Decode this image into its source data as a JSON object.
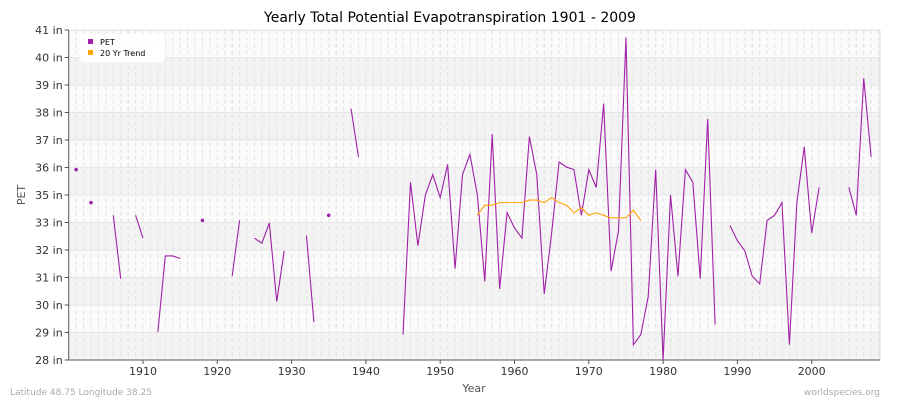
{
  "chart_data": {
    "type": "line",
    "title": "Yearly Total Potential Evapotranspiration 1901 - 2009",
    "xlabel": "Year",
    "ylabel": "PET",
    "xlim": [
      1900,
      2009
    ],
    "ylim": [
      28,
      41
    ],
    "y_tick_labels": [
      "28 in",
      "29 in",
      "30 in",
      "31 in",
      "32 in",
      "33 in",
      "35 in",
      "36 in",
      "37 in",
      "38 in",
      "39 in",
      "40 in",
      "41 in"
    ],
    "x_ticks": [
      1910,
      1920,
      1930,
      1940,
      1950,
      1960,
      1970,
      1980,
      1990,
      2000
    ],
    "grid": true,
    "legend_placement": "top-left",
    "series": [
      {
        "name": "PET",
        "color": "#a020a8",
        "points": [
          [
            1901,
            35.5
          ],
          [
            1902,
            null
          ],
          [
            1903,
            34.2
          ],
          [
            1904,
            null
          ],
          [
            1905,
            null
          ],
          [
            1906,
            33.7
          ],
          [
            1907,
            31.2
          ],
          [
            1908,
            null
          ],
          [
            1909,
            33.7
          ],
          [
            1910,
            32.8
          ],
          [
            1911,
            null
          ],
          [
            1912,
            29.1
          ],
          [
            1913,
            32.1
          ],
          [
            1914,
            32.1
          ],
          [
            1915,
            32.0
          ],
          [
            1916,
            null
          ],
          [
            1917,
            null
          ],
          [
            1918,
            33.5
          ],
          [
            1919,
            null
          ],
          [
            1920,
            null
          ],
          [
            1921,
            null
          ],
          [
            1922,
            31.3
          ],
          [
            1923,
            33.5
          ],
          [
            1924,
            null
          ],
          [
            1925,
            32.8
          ],
          [
            1926,
            32.6
          ],
          [
            1927,
            33.4
          ],
          [
            1928,
            30.3
          ],
          [
            1929,
            32.3
          ],
          [
            1930,
            null
          ],
          [
            1931,
            null
          ],
          [
            1932,
            32.9
          ],
          [
            1933,
            29.5
          ],
          [
            1934,
            null
          ],
          [
            1935,
            33.7
          ],
          [
            1936,
            null
          ],
          [
            1937,
            null
          ],
          [
            1938,
            37.9
          ],
          [
            1939,
            36.0
          ],
          [
            1940,
            null
          ],
          [
            1941,
            null
          ],
          [
            1942,
            null
          ],
          [
            1943,
            null
          ],
          [
            1944,
            null
          ],
          [
            1945,
            29.0
          ],
          [
            1946,
            35.0
          ],
          [
            1947,
            32.5
          ],
          [
            1948,
            34.5
          ],
          [
            1949,
            35.3
          ],
          [
            1950,
            34.4
          ],
          [
            1951,
            35.7
          ],
          [
            1952,
            31.6
          ],
          [
            1953,
            35.3
          ],
          [
            1954,
            36.1
          ],
          [
            1955,
            34.5
          ],
          [
            1956,
            31.1
          ],
          [
            1957,
            36.9
          ],
          [
            1958,
            30.8
          ],
          [
            1959,
            33.8
          ],
          [
            1960,
            33.2
          ],
          [
            1961,
            32.8
          ],
          [
            1962,
            36.8
          ],
          [
            1963,
            35.3
          ],
          [
            1964,
            30.6
          ],
          [
            1965,
            33.0
          ],
          [
            1966,
            35.8
          ],
          [
            1967,
            35.6
          ],
          [
            1968,
            35.5
          ],
          [
            1969,
            33.7
          ],
          [
            1970,
            35.5
          ],
          [
            1971,
            34.8
          ],
          [
            1972,
            38.1
          ],
          [
            1973,
            31.5
          ],
          [
            1974,
            33.1
          ],
          [
            1975,
            40.7
          ],
          [
            1976,
            28.6
          ],
          [
            1977,
            29.0
          ],
          [
            1978,
            30.5
          ],
          [
            1979,
            35.5
          ],
          [
            1980,
            28.0
          ],
          [
            1981,
            34.5
          ],
          [
            1982,
            31.3
          ],
          [
            1983,
            35.5
          ],
          [
            1984,
            35.0
          ],
          [
            1985,
            31.2
          ],
          [
            1986,
            37.5
          ],
          [
            1987,
            29.4
          ],
          [
            1988,
            null
          ],
          [
            1989,
            33.3
          ],
          [
            1990,
            32.7
          ],
          [
            1991,
            32.3
          ],
          [
            1992,
            31.3
          ],
          [
            1993,
            31.0
          ],
          [
            1994,
            33.5
          ],
          [
            1995,
            33.7
          ],
          [
            1996,
            34.2
          ],
          [
            1997,
            28.6
          ],
          [
            1998,
            34.2
          ],
          [
            1999,
            36.4
          ],
          [
            2000,
            33.0
          ],
          [
            2001,
            34.8
          ],
          [
            2002,
            null
          ],
          [
            2003,
            null
          ],
          [
            2004,
            null
          ],
          [
            2005,
            34.8
          ],
          [
            2006,
            33.7
          ],
          [
            2007,
            39.1
          ],
          [
            2008,
            36.0
          ],
          [
            2009,
            null
          ]
        ]
      },
      {
        "name": "20 Yr Trend",
        "color": "#ffa500",
        "points": [
          [
            1955,
            33.7
          ],
          [
            1956,
            34.1
          ],
          [
            1957,
            34.1
          ],
          [
            1958,
            34.2
          ],
          [
            1959,
            34.2
          ],
          [
            1960,
            34.2
          ],
          [
            1961,
            34.2
          ],
          [
            1962,
            34.3
          ],
          [
            1963,
            34.3
          ],
          [
            1964,
            34.2
          ],
          [
            1965,
            34.4
          ],
          [
            1966,
            34.2
          ],
          [
            1967,
            34.1
          ],
          [
            1968,
            33.8
          ],
          [
            1969,
            34.0
          ],
          [
            1970,
            33.7
          ],
          [
            1971,
            33.8
          ],
          [
            1972,
            33.7
          ],
          [
            1973,
            33.6
          ],
          [
            1974,
            33.6
          ],
          [
            1975,
            33.6
          ],
          [
            1976,
            33.9
          ],
          [
            1977,
            33.5
          ]
        ]
      }
    ]
  },
  "footer": {
    "left": "Latitude 48.75 Longitude 38.25",
    "right": "worldspecies.org"
  }
}
